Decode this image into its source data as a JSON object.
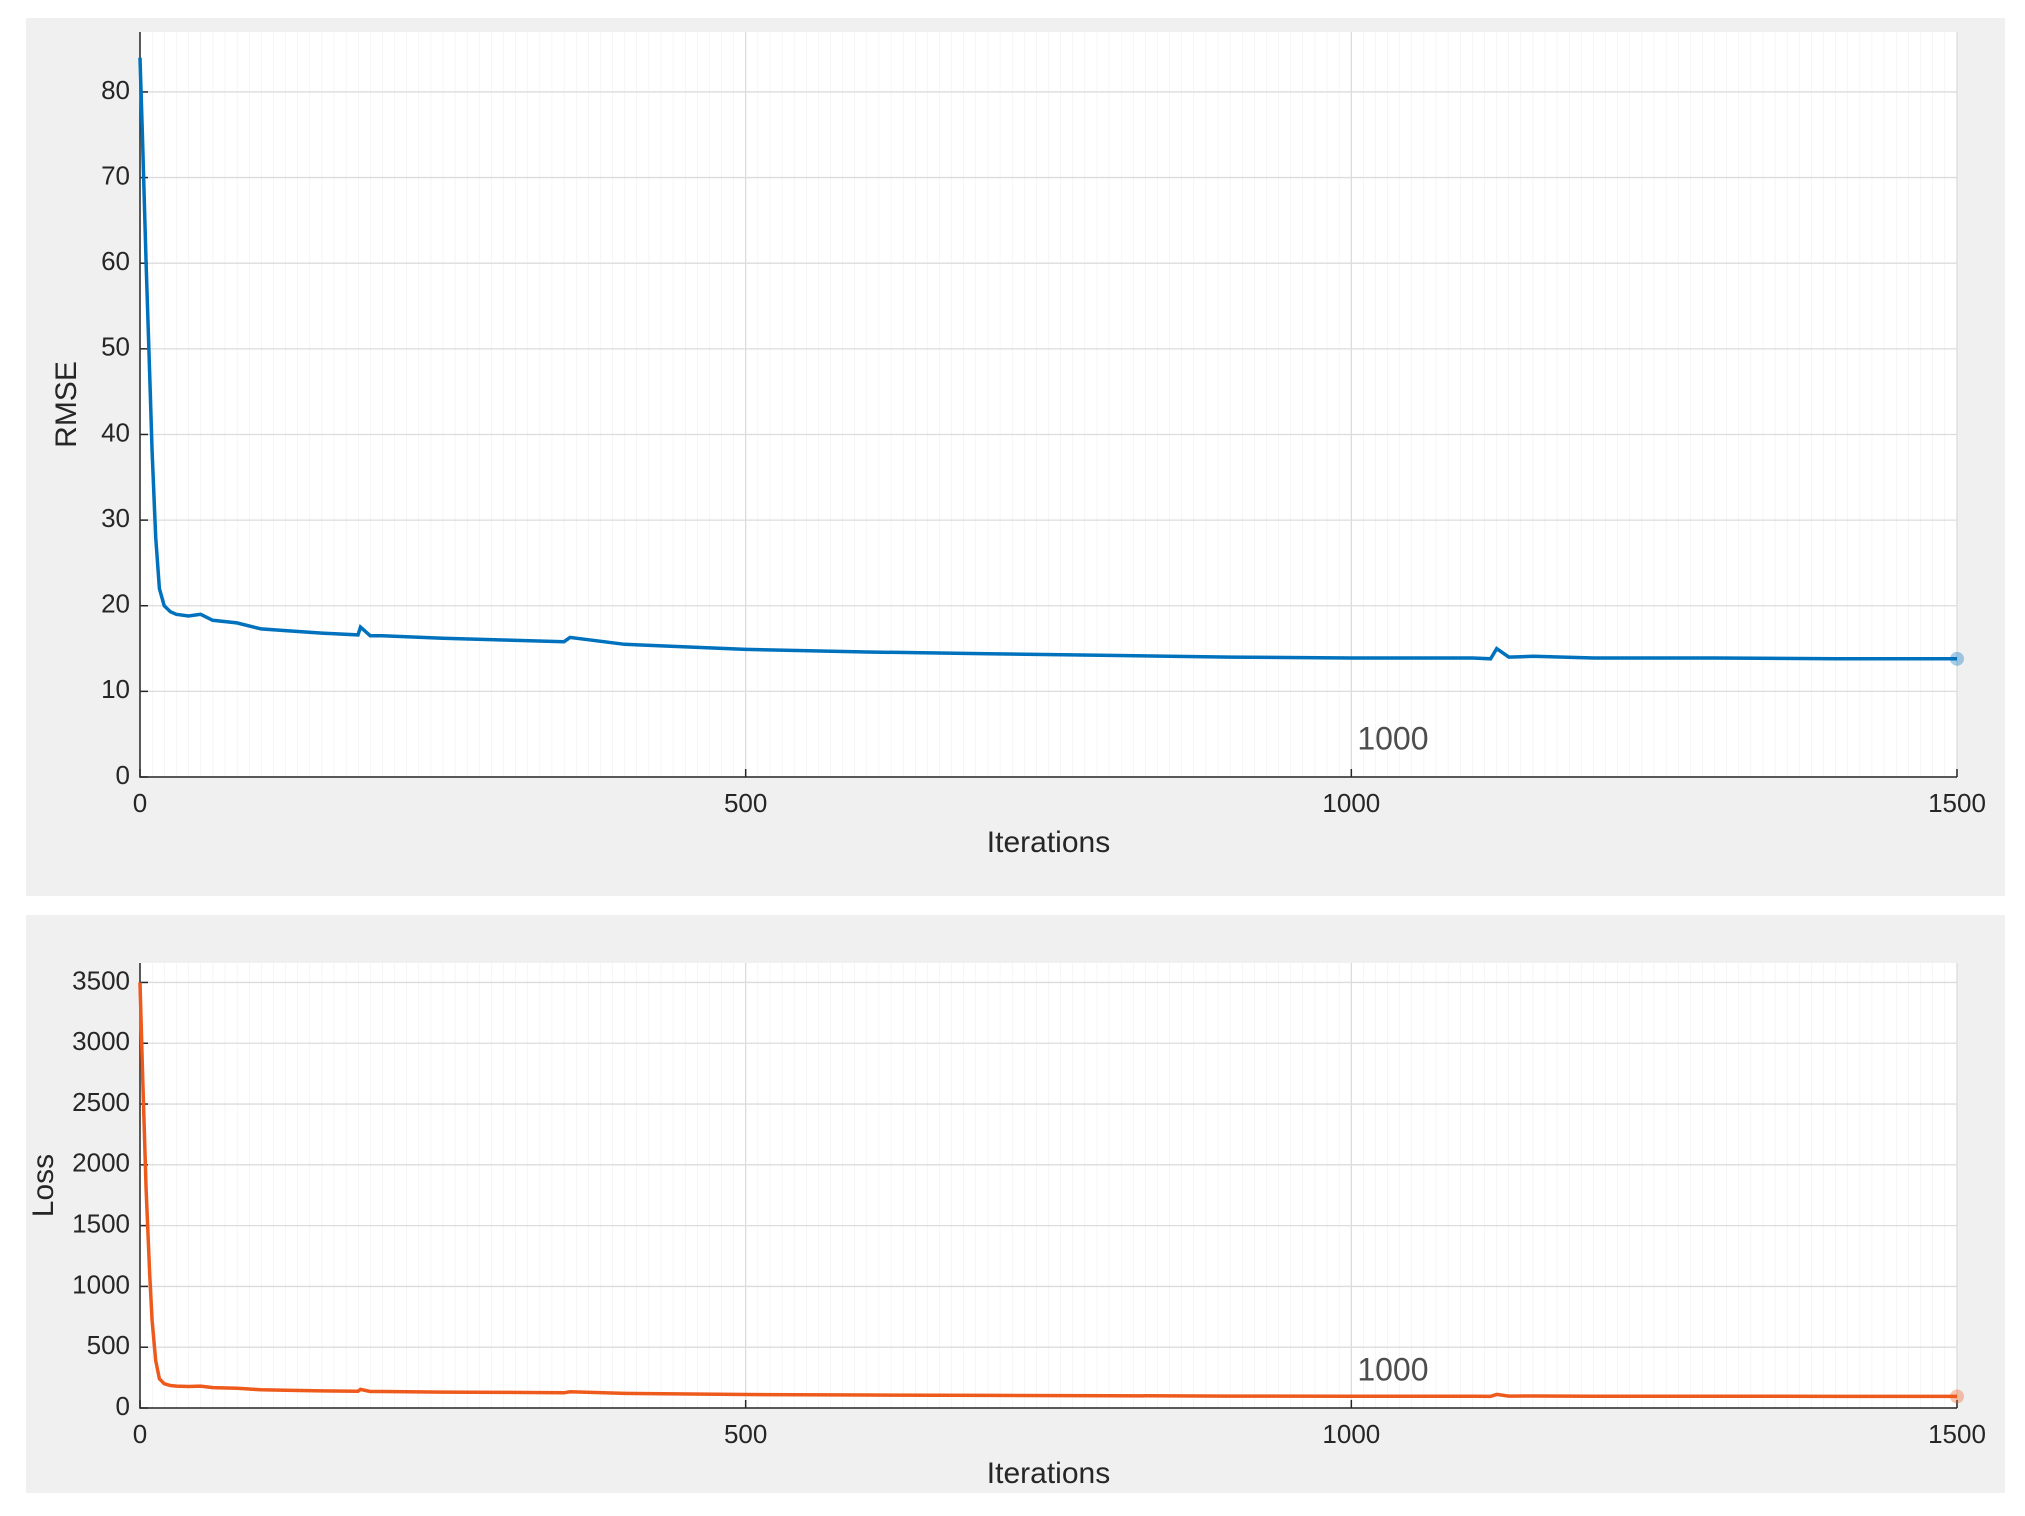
{
  "chart_data": [
    {
      "type": "line",
      "ylabel": "RMSE",
      "xlabel": "Iterations",
      "annotation": "1000",
      "x": [
        0,
        2,
        5,
        8,
        10,
        13,
        16,
        20,
        25,
        30,
        40,
        50,
        60,
        80,
        100,
        120,
        150,
        180,
        182,
        190,
        200,
        250,
        300,
        350,
        355,
        400,
        500,
        600,
        700,
        800,
        900,
        1000,
        1100,
        1115,
        1120,
        1130,
        1150,
        1200,
        1300,
        1400,
        1500
      ],
      "values": [
        84,
        75,
        60,
        47,
        38,
        28,
        22,
        20,
        19.3,
        19,
        18.8,
        19,
        18.3,
        18,
        17.3,
        17.1,
        16.8,
        16.6,
        17.5,
        16.5,
        16.5,
        16.2,
        16,
        15.8,
        16.3,
        15.5,
        14.9,
        14.6,
        14.4,
        14.2,
        14,
        13.9,
        13.9,
        13.8,
        15,
        14,
        14.1,
        13.9,
        13.9,
        13.8,
        13.8
      ],
      "color": "#0072bd",
      "xlim": [
        0,
        1500
      ],
      "xticks": [
        0,
        500,
        1000,
        1500
      ],
      "ylim": [
        0,
        87
      ],
      "yticks": [
        0,
        10,
        20,
        30,
        40,
        50,
        60,
        70,
        80
      ],
      "grid": true
    },
    {
      "type": "line",
      "ylabel": "Loss",
      "xlabel": "Iterations",
      "annotation": "1000",
      "x": [
        0,
        2,
        5,
        8,
        10,
        13,
        16,
        20,
        25,
        30,
        40,
        50,
        60,
        80,
        100,
        120,
        150,
        180,
        182,
        190,
        200,
        250,
        300,
        350,
        355,
        400,
        500,
        600,
        700,
        800,
        900,
        1000,
        1100,
        1115,
        1120,
        1130,
        1150,
        1200,
        1300,
        1400,
        1500
      ],
      "values": [
        3500,
        2800,
        1800,
        1100,
        720,
        390,
        240,
        200,
        185,
        180,
        177,
        180,
        168,
        162,
        150,
        146,
        141,
        138,
        153,
        136,
        136,
        131,
        128,
        125,
        133,
        120,
        111,
        107,
        104,
        101,
        98,
        97,
        97,
        95,
        112,
        98,
        99,
        97,
        97,
        95,
        95
      ],
      "color": "#ee5a1c",
      "xlim": [
        0,
        1500
      ],
      "xticks": [
        0,
        500,
        1000,
        1500
      ],
      "ylim": [
        0,
        3660
      ],
      "yticks": [
        0,
        500,
        1000,
        1500,
        2000,
        2500,
        3000,
        3500
      ],
      "grid": true
    }
  ]
}
